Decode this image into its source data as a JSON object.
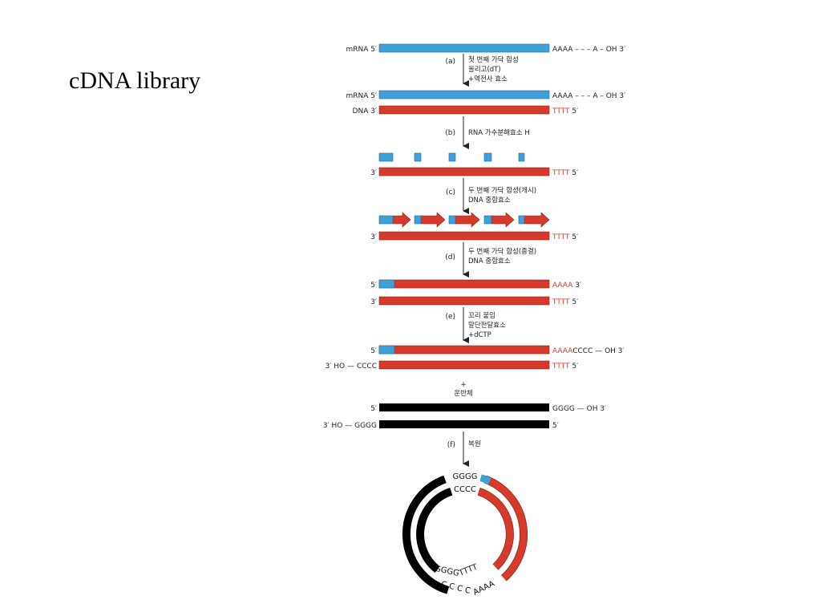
{
  "slide": {
    "title": "cDNA library"
  },
  "colors": {
    "rna": "#3fa0d8",
    "dna": "#d63a2a",
    "vector": "#000000",
    "ink": "#222222"
  },
  "row1": {
    "left": "mRNA 5′",
    "right": "AAAA  –  –  –   A – OH 3′"
  },
  "stepA": {
    "letter": "(a)",
    "notes": [
      "첫 번째 가닥 합성",
      "올리고(dT)",
      "+역전사 효소"
    ]
  },
  "row2": {
    "top_left": "mRNA 5′",
    "top_right": "AAAA  –  –  –   A – OH 3′",
    "bottom_left": "DNA 3′",
    "bottom_tail": "TTTT",
    "bottom_end": " 5′"
  },
  "stepB": {
    "letter": "(b)",
    "notes": [
      "RNA 가수분해효소 H"
    ]
  },
  "row3": {
    "left": "3′",
    "tail": "TTTT",
    "end": " 5′"
  },
  "stepC": {
    "letter": "(c)",
    "notes": [
      "두 번째 가닥 합성(개시)",
      "DNA 중합효소"
    ]
  },
  "row4": {
    "left": "3′",
    "tail": "TTTT",
    "end": " 5′"
  },
  "stepD": {
    "letter": "(d)",
    "notes": [
      "두 번째 가닥 합성(종결)",
      "DNA 중합효소"
    ]
  },
  "row5": {
    "top_left": "5′",
    "top_tail": "AAAA",
    "top_end": " 3′",
    "bottom_left": "3′",
    "bottom_tail": "TTTT",
    "bottom_end": " 5′"
  },
  "stepE": {
    "letter": "(e)",
    "notes": [
      "꼬리 붙임",
      "말단전달효소",
      "+dCTP"
    ]
  },
  "row6": {
    "top_left": "5′",
    "top_tail": "AAAA",
    "top_end": "CCCC — OH 3′",
    "bottom_left": "3′ HO — CCCC",
    "bottom_tail": "TTTT",
    "bottom_end": " 5′"
  },
  "plus": {
    "sign": "+",
    "label": "운반체"
  },
  "row7": {
    "top_left": "5′",
    "top_right": "GGGG — OH 3′",
    "bottom_left": "3′ HO — GGGG",
    "bottom_right": "5′"
  },
  "stepF": {
    "letter": "(f)",
    "notes": [
      "복원"
    ]
  },
  "circle": {
    "top_outer": "GGGG",
    "top_inner": "CCCC",
    "bottom_inner_black": "GGGG",
    "bottom_inner_red": "TTTT",
    "bottom_outer_black": "C C C C",
    "bottom_outer_red": "AAAA"
  }
}
